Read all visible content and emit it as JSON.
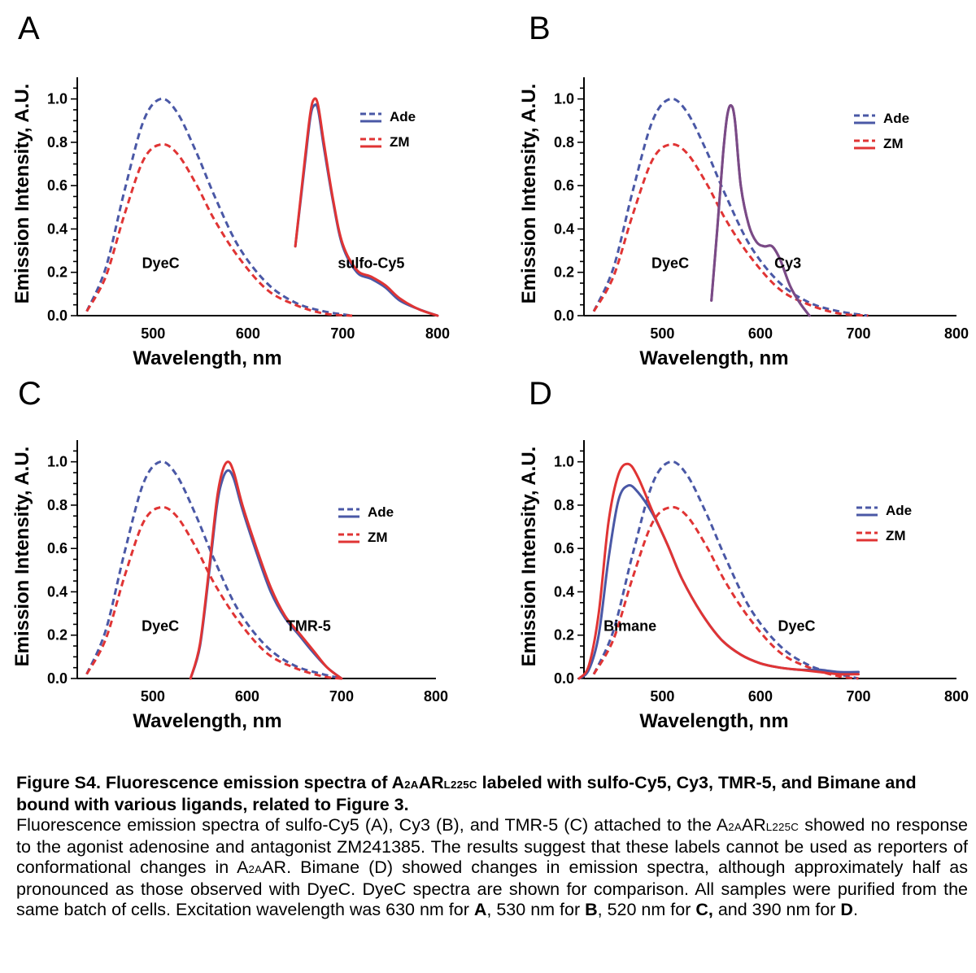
{
  "chart_data": [
    {
      "panel": "A",
      "type": "line",
      "xlabel": "Wavelength, nm",
      "ylabel": "Emission Intensity, A.U.",
      "xlim": [
        420,
        800
      ],
      "ylim": [
        0,
        1.1
      ],
      "xticks": [
        500,
        600,
        700,
        800
      ],
      "yticks": [
        "0.0",
        "0.2",
        "0.4",
        "0.6",
        "0.8",
        "1.0"
      ],
      "legend": {
        "placement": "top-right",
        "entries": [
          "Ade",
          "ZM"
        ]
      },
      "annotations": [
        {
          "text": "DyeC",
          "x": 508,
          "y": 0.2
        },
        {
          "text": "sulfo-Cy5",
          "x": 730,
          "y": 0.2
        }
      ],
      "series": [
        {
          "name": "Ade",
          "label": "DyeC",
          "style": "dashed",
          "color": "#4a58a6",
          "x": [
            430,
            450,
            470,
            490,
            508,
            525,
            545,
            565,
            590,
            620,
            650,
            680,
            710
          ],
          "y": [
            0.02,
            0.22,
            0.58,
            0.9,
            1.0,
            0.94,
            0.76,
            0.55,
            0.32,
            0.15,
            0.06,
            0.02,
            0.0
          ]
        },
        {
          "name": "ZM",
          "label": "DyeC",
          "style": "dashed",
          "color": "#e03434",
          "x": [
            430,
            450,
            470,
            490,
            508,
            525,
            545,
            565,
            590,
            620,
            650,
            680,
            710
          ],
          "y": [
            0.02,
            0.18,
            0.47,
            0.72,
            0.79,
            0.75,
            0.61,
            0.44,
            0.27,
            0.12,
            0.05,
            0.01,
            0.0
          ]
        },
        {
          "name": "Ade",
          "label": "sulfo-Cy5",
          "style": "solid",
          "color": "#4a58a6",
          "x": [
            650,
            660,
            666,
            670,
            674,
            680,
            690,
            700,
            715,
            730,
            745,
            760,
            780,
            800
          ],
          "y": [
            0.32,
            0.7,
            0.92,
            0.97,
            0.95,
            0.78,
            0.52,
            0.32,
            0.2,
            0.17,
            0.13,
            0.07,
            0.03,
            0.0
          ]
        },
        {
          "name": "ZM",
          "label": "sulfo-Cy5",
          "style": "solid",
          "color": "#e03434",
          "x": [
            650,
            660,
            666,
            670,
            674,
            680,
            690,
            700,
            715,
            730,
            745,
            760,
            780,
            800
          ],
          "y": [
            0.32,
            0.72,
            0.94,
            1.0,
            0.97,
            0.8,
            0.53,
            0.33,
            0.21,
            0.18,
            0.14,
            0.08,
            0.03,
            0.0
          ]
        }
      ]
    },
    {
      "panel": "B",
      "type": "line",
      "xlabel": "Wavelength, nm",
      "ylabel": "Emission Intensity, A.U.",
      "xlim": [
        420,
        800
      ],
      "ylim": [
        0,
        1.1
      ],
      "xticks": [
        500,
        600,
        700,
        800
      ],
      "yticks": [
        "0.0",
        "0.2",
        "0.4",
        "0.6",
        "0.8",
        "1.0"
      ],
      "legend": {
        "placement": "top-right",
        "entries": [
          "Ade",
          "ZM"
        ]
      },
      "annotations": [
        {
          "text": "DyeC",
          "x": 508,
          "y": 0.2
        },
        {
          "text": "Cy3",
          "x": 628,
          "y": 0.2
        }
      ],
      "series": [
        {
          "name": "Ade",
          "label": "DyeC",
          "style": "dashed",
          "color": "#4a58a6",
          "x": [
            430,
            450,
            470,
            490,
            508,
            525,
            545,
            565,
            590,
            620,
            650,
            680,
            710
          ],
          "y": [
            0.02,
            0.22,
            0.58,
            0.9,
            1.0,
            0.94,
            0.76,
            0.55,
            0.32,
            0.15,
            0.06,
            0.02,
            0.0
          ]
        },
        {
          "name": "ZM",
          "label": "DyeC",
          "style": "dashed",
          "color": "#e03434",
          "x": [
            430,
            450,
            470,
            490,
            508,
            525,
            545,
            565,
            590,
            620,
            650,
            680,
            710
          ],
          "y": [
            0.02,
            0.18,
            0.47,
            0.72,
            0.79,
            0.75,
            0.61,
            0.44,
            0.27,
            0.12,
            0.05,
            0.01,
            0.0
          ]
        },
        {
          "name": "Ade",
          "label": "Cy3",
          "style": "solid",
          "color": "#7a4a86",
          "x": [
            550,
            556,
            562,
            566,
            570,
            574,
            580,
            588,
            596,
            604,
            612,
            620,
            630,
            640,
            650
          ],
          "y": [
            0.07,
            0.4,
            0.75,
            0.92,
            0.97,
            0.9,
            0.6,
            0.42,
            0.34,
            0.32,
            0.32,
            0.26,
            0.14,
            0.06,
            0.0
          ]
        },
        {
          "name": "ZM",
          "label": "Cy3",
          "style": "solid",
          "color": "#7a4a86",
          "x": [
            550,
            556,
            562,
            566,
            570,
            574,
            580,
            588,
            596,
            604,
            612,
            620,
            630,
            640,
            650
          ],
          "y": [
            0.07,
            0.4,
            0.75,
            0.92,
            0.97,
            0.9,
            0.6,
            0.42,
            0.34,
            0.32,
            0.32,
            0.26,
            0.14,
            0.06,
            0.0
          ]
        }
      ]
    },
    {
      "panel": "C",
      "type": "line",
      "xlabel": "Wavelength, nm",
      "ylabel": "Emission Intensity, A.U.",
      "xlim": [
        420,
        800
      ],
      "ylim": [
        0,
        1.1
      ],
      "xticks": [
        500,
        600,
        700,
        800
      ],
      "yticks": [
        "0.0",
        "0.2",
        "0.4",
        "0.6",
        "0.8",
        "1.0"
      ],
      "legend": {
        "placement": "right",
        "entries": [
          "Ade",
          "ZM"
        ]
      },
      "annotations": [
        {
          "text": "DyeC",
          "x": 508,
          "y": 0.2
        },
        {
          "text": "TMR-5",
          "x": 665,
          "y": 0.2
        }
      ],
      "series": [
        {
          "name": "Ade",
          "label": "DyeC",
          "style": "dashed",
          "color": "#4a58a6",
          "x": [
            430,
            450,
            470,
            490,
            508,
            525,
            545,
            565,
            590,
            620,
            650,
            680,
            700
          ],
          "y": [
            0.02,
            0.22,
            0.58,
            0.9,
            1.0,
            0.94,
            0.76,
            0.55,
            0.32,
            0.15,
            0.06,
            0.02,
            0.0
          ]
        },
        {
          "name": "ZM",
          "label": "DyeC",
          "style": "dashed",
          "color": "#e03434",
          "x": [
            430,
            450,
            470,
            490,
            508,
            525,
            545,
            565,
            590,
            620,
            650,
            680,
            700
          ],
          "y": [
            0.02,
            0.18,
            0.47,
            0.72,
            0.79,
            0.75,
            0.61,
            0.44,
            0.27,
            0.12,
            0.05,
            0.01,
            0.0
          ]
        },
        {
          "name": "Ade",
          "label": "TMR-5",
          "style": "solid",
          "color": "#4a58a6",
          "x": [
            540,
            550,
            560,
            568,
            574,
            580,
            586,
            595,
            610,
            625,
            640,
            655,
            670,
            685,
            700
          ],
          "y": [
            0.0,
            0.15,
            0.5,
            0.8,
            0.92,
            0.96,
            0.92,
            0.78,
            0.58,
            0.4,
            0.28,
            0.2,
            0.12,
            0.05,
            0.0
          ]
        },
        {
          "name": "ZM",
          "label": "TMR-5",
          "style": "solid",
          "color": "#e03434",
          "x": [
            540,
            550,
            560,
            568,
            574,
            580,
            586,
            595,
            610,
            625,
            640,
            655,
            670,
            685,
            700
          ],
          "y": [
            0.0,
            0.16,
            0.52,
            0.83,
            0.96,
            1.0,
            0.95,
            0.8,
            0.6,
            0.42,
            0.29,
            0.21,
            0.13,
            0.05,
            0.0
          ]
        }
      ]
    },
    {
      "panel": "D",
      "type": "line",
      "xlabel": "Wavelength, nm",
      "ylabel": "Emission Intensity, A.U.",
      "xlim": [
        420,
        800
      ],
      "ylim": [
        0,
        1.1
      ],
      "xticks": [
        500,
        600,
        700,
        800
      ],
      "yticks": [
        "0.0",
        "0.2",
        "0.4",
        "0.6",
        "0.8",
        "1.0"
      ],
      "legend": {
        "placement": "top-right",
        "entries": [
          "Ade",
          "ZM"
        ]
      },
      "annotations": [
        {
          "text": "Bimane",
          "x": 467,
          "y": 0.2
        },
        {
          "text": "DyeC",
          "x": 637,
          "y": 0.2
        }
      ],
      "series": [
        {
          "name": "Ade",
          "label": "DyeC",
          "style": "dashed",
          "color": "#4a58a6",
          "x": [
            430,
            450,
            470,
            490,
            508,
            525,
            545,
            565,
            590,
            620,
            650,
            680,
            700
          ],
          "y": [
            0.02,
            0.22,
            0.58,
            0.9,
            1.0,
            0.94,
            0.76,
            0.55,
            0.32,
            0.15,
            0.06,
            0.02,
            0.0
          ]
        },
        {
          "name": "ZM",
          "label": "DyeC",
          "style": "dashed",
          "color": "#e03434",
          "x": [
            430,
            450,
            470,
            490,
            508,
            525,
            545,
            565,
            590,
            620,
            650,
            680,
            700
          ],
          "y": [
            0.02,
            0.18,
            0.47,
            0.72,
            0.79,
            0.75,
            0.61,
            0.44,
            0.27,
            0.12,
            0.05,
            0.01,
            0.0
          ]
        },
        {
          "name": "Ade",
          "label": "Bimane",
          "style": "solid",
          "color": "#4a58a6",
          "x": [
            415,
            425,
            435,
            445,
            455,
            465,
            475,
            490,
            505,
            520,
            540,
            560,
            580,
            600,
            620,
            640,
            660,
            680,
            700
          ],
          "y": [
            0.0,
            0.04,
            0.2,
            0.55,
            0.82,
            0.89,
            0.86,
            0.76,
            0.62,
            0.46,
            0.3,
            0.18,
            0.11,
            0.07,
            0.05,
            0.04,
            0.04,
            0.03,
            0.03
          ]
        },
        {
          "name": "ZM",
          "label": "Bimane",
          "style": "solid",
          "color": "#e03434",
          "x": [
            415,
            425,
            435,
            445,
            455,
            465,
            475,
            490,
            505,
            520,
            540,
            560,
            580,
            600,
            620,
            640,
            660,
            680,
            700
          ],
          "y": [
            0.0,
            0.06,
            0.3,
            0.72,
            0.94,
            0.99,
            0.93,
            0.77,
            0.62,
            0.46,
            0.3,
            0.18,
            0.11,
            0.07,
            0.05,
            0.04,
            0.03,
            0.02,
            0.02
          ]
        }
      ]
    }
  ],
  "caption": {
    "title_pre": "Figure S4. Fluorescence emission spectra of A",
    "title_sub1": "2A",
    "title_mid": "AR",
    "title_sub2": "L225C",
    "title_post": " labeled with sulfo-Cy5, Cy3, TMR-5, and Bimane and bound with various ligands, related to Figure 3.",
    "body1": "Fluorescence emission spectra of sulfo-Cy5 (A), Cy3 (B), and TMR-5 (C) attached to the A",
    "body1_sub1": "2A",
    "body1_mid": "AR",
    "body1_sub2": "L225C",
    "body2": " showed no response to the agonist adenosine and antagonist ZM241385. The results suggest that these labels cannot be used as reporters of conformational changes in A",
    "body2_sub": "2A",
    "body3": "AR. Bimane (D) showed changes in emission spectra, although approximately half as pronounced as those observed with DyeC. DyeC spectra are shown for comparison. All samples were purified from the same batch of cells. Excitation wavelength was 630 nm for ",
    "bold_a": "A",
    "sep1": ", 530 nm for ",
    "bold_b": "B",
    "sep2": ", 520 nm for ",
    "bold_c": "C,",
    "sep3": " and 390 nm for ",
    "bold_d": "D",
    "end": "."
  }
}
